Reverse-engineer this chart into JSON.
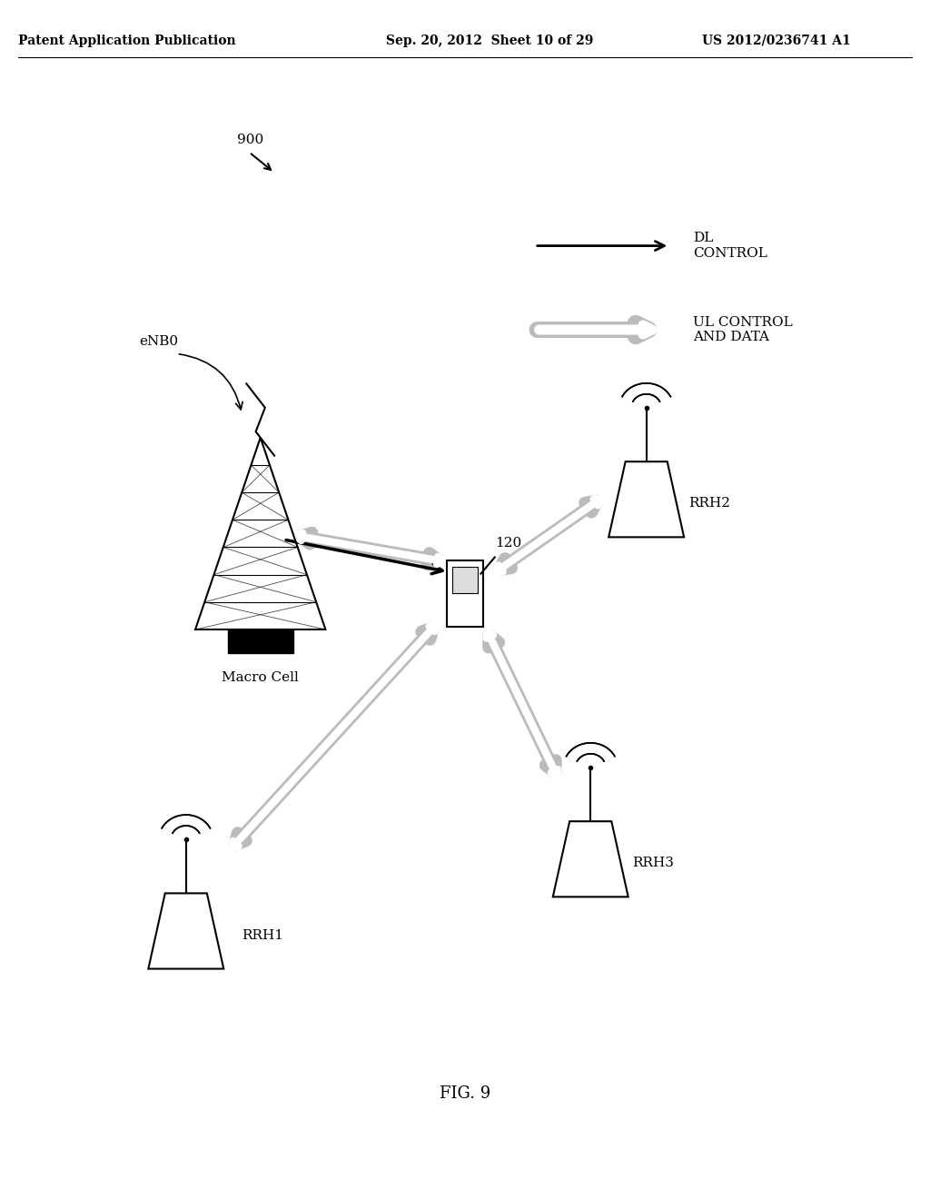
{
  "bg_color": "#ffffff",
  "header_left": "Patent Application Publication",
  "header_mid": "Sep. 20, 2012  Sheet 10 of 29",
  "header_right": "US 2012/0236741 A1",
  "fig_label": "FIG. 9",
  "diagram_label": "900",
  "ue_label": "120",
  "macro_label": "Macro Cell",
  "enb_label": "eNB0",
  "rrh_labels": [
    "RRH1",
    "RRH2",
    "RRH3"
  ],
  "legend_dl": "DL\nCONTROL",
  "legend_ul": "UL CONTROL\nAND DATA",
  "text_color": "#000000"
}
